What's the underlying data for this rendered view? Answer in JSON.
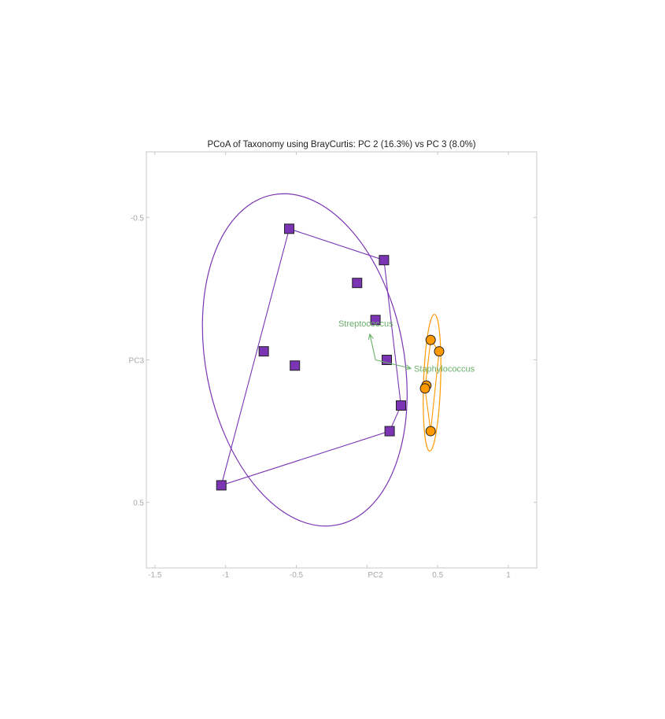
{
  "chart_data": {
    "type": "scatter",
    "title": "PCoA of Taxonomy using BrayCurtis: PC 2 (16.3%) vs PC 3 (8.0%)",
    "xlabel": "PC2",
    "ylabel": "PC3",
    "xlim": [
      -1.56,
      1.2
    ],
    "ylim": [
      -0.73,
      0.73
    ],
    "y_inverted": true,
    "x_ticks": [
      -1.5,
      -1,
      -0.5,
      0.5,
      1
    ],
    "x_tick_labels": [
      "-1.5",
      "-1",
      "-0.5",
      "0.5",
      "1"
    ],
    "y_ticks": [
      -0.5,
      0.5
    ],
    "y_tick_labels": [
      "-0.5",
      "0.5"
    ],
    "grid": false,
    "series": [
      {
        "marker": "square",
        "color": "#7b35b4",
        "points": [
          {
            "x": -0.55,
            "y": -0.46
          },
          {
            "x": 0.12,
            "y": -0.35
          },
          {
            "x": -0.07,
            "y": -0.27
          },
          {
            "x": 0.06,
            "y": -0.14
          },
          {
            "x": -0.73,
            "y": -0.03
          },
          {
            "x": -0.51,
            "y": 0.02
          },
          {
            "x": 0.14,
            "y": 0.0
          },
          {
            "x": 0.24,
            "y": 0.16
          },
          {
            "x": 0.16,
            "y": 0.25
          },
          {
            "x": -1.03,
            "y": 0.44
          }
        ],
        "ellipse": {
          "cx": -0.44,
          "cy": 0.0,
          "rx": 0.7,
          "ry": 0.59,
          "angle_deg": -11
        },
        "hull_order": [
          0,
          1,
          7,
          8,
          9
        ]
      },
      {
        "marker": "circle",
        "color": "#ff9900",
        "points": [
          {
            "x": 0.45,
            "y": -0.07
          },
          {
            "x": 0.51,
            "y": -0.03
          },
          {
            "x": 0.42,
            "y": 0.09
          },
          {
            "x": 0.41,
            "y": 0.1
          },
          {
            "x": 0.45,
            "y": 0.25
          }
        ],
        "ellipse": {
          "cx": 0.46,
          "cy": 0.08,
          "rx": 0.06,
          "ry": 0.24,
          "angle_deg": 2
        },
        "hull_order": [
          0,
          1,
          4,
          3
        ]
      }
    ],
    "arrows": [
      {
        "label": "Streptococcus",
        "x": 0.02,
        "y": -0.09,
        "color": "#6ab06a"
      },
      {
        "label": "Staphylococcus",
        "x": 0.31,
        "y": 0.03,
        "color": "#6ab06a"
      }
    ],
    "arrow_origin": {
      "x": 0.06,
      "y": 0.0
    }
  }
}
